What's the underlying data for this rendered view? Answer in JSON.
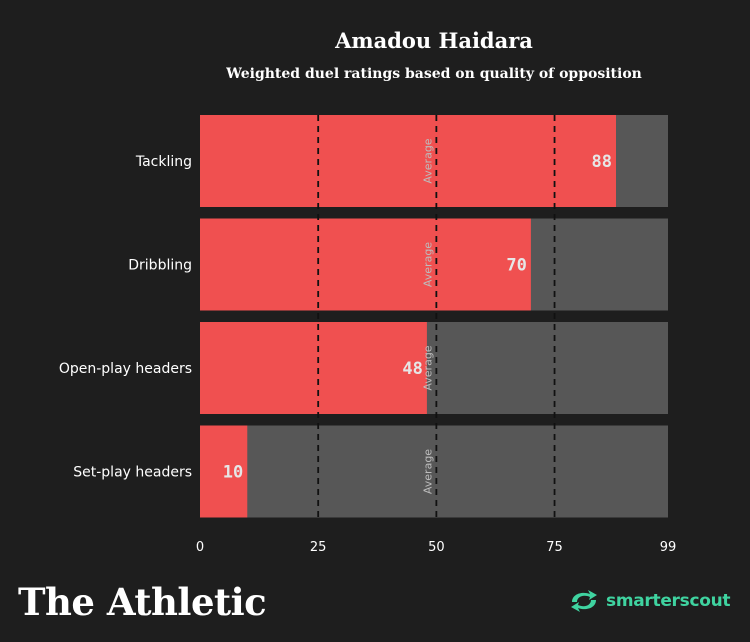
{
  "header": {
    "title": "Amadou Haidara",
    "subtitle": "Weighted duel ratings based on quality of opposition"
  },
  "chart_data": {
    "type": "bar",
    "orientation": "horizontal",
    "categories": [
      "Tackling",
      "Dribbling",
      "Open-play headers",
      "Set-play headers"
    ],
    "values": [
      88,
      70,
      48,
      10
    ],
    "xlim": [
      0,
      99
    ],
    "xticks": [
      0,
      25,
      50,
      75,
      99
    ],
    "xtick_labels": [
      "0",
      "25",
      "50",
      "75",
      "99"
    ],
    "reference_lines": [
      25,
      50,
      75
    ],
    "average_line": 50,
    "average_label": "Average",
    "bar_color": "#f05050",
    "track_color": "#575757"
  },
  "footer": {
    "brand": "The Athletic",
    "partner_icon": "smarterscout-arrows-icon",
    "partner_prefix": "smarter",
    "partner_suffix": "scout",
    "partner_color": "#3fd3a0"
  }
}
